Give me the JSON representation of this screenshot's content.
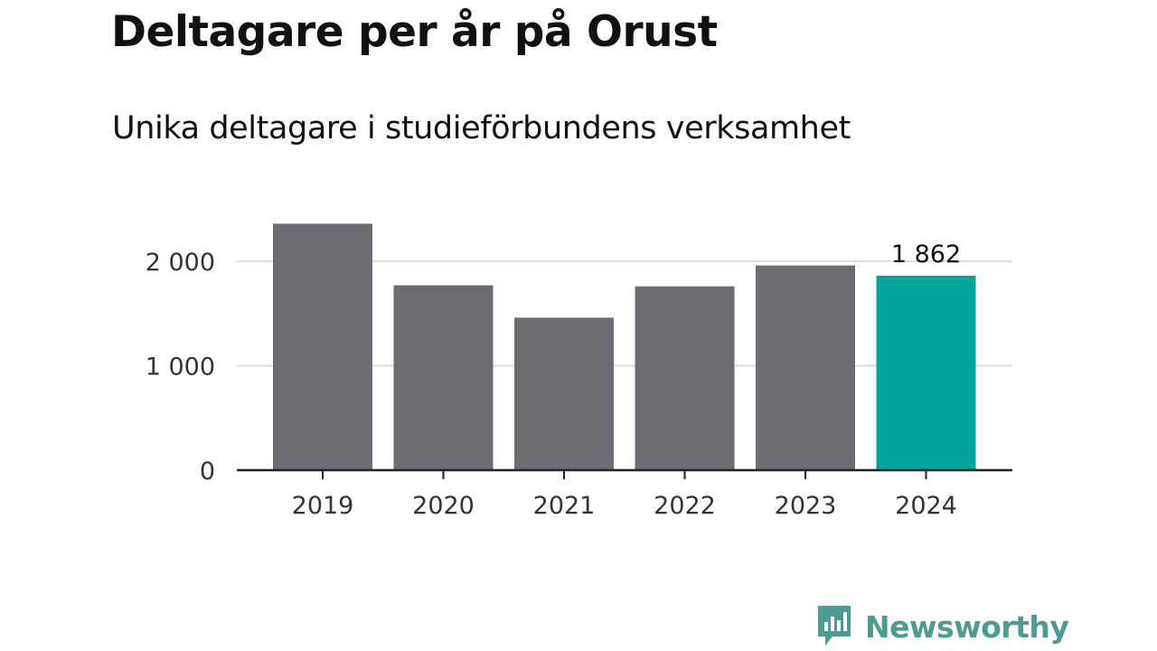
{
  "title": "Deltagare per år på Orust",
  "subtitle": "Unika deltagare i studieförbundens verksamhet",
  "brand": "Newsworthy",
  "colors": {
    "bar_default": "#6d6c72",
    "bar_highlight": "#00a49a",
    "grid": "#dddddd",
    "axis": "#222222",
    "brand": "#4f9a93"
  },
  "chart_data": {
    "type": "bar",
    "categories": [
      "2019",
      "2020",
      "2021",
      "2022",
      "2023",
      "2024"
    ],
    "values": [
      2360,
      1770,
      1460,
      1760,
      1960,
      1862
    ],
    "highlight_index": 5,
    "data_labels": [
      {
        "index": 5,
        "text": "1 862"
      }
    ],
    "yticks": [
      {
        "value": 0,
        "label": "0"
      },
      {
        "value": 1000,
        "label": "1 000"
      },
      {
        "value": 2000,
        "label": "2 000"
      }
    ],
    "ylim": [
      0,
      2500
    ],
    "grid": true,
    "legend": "none"
  }
}
